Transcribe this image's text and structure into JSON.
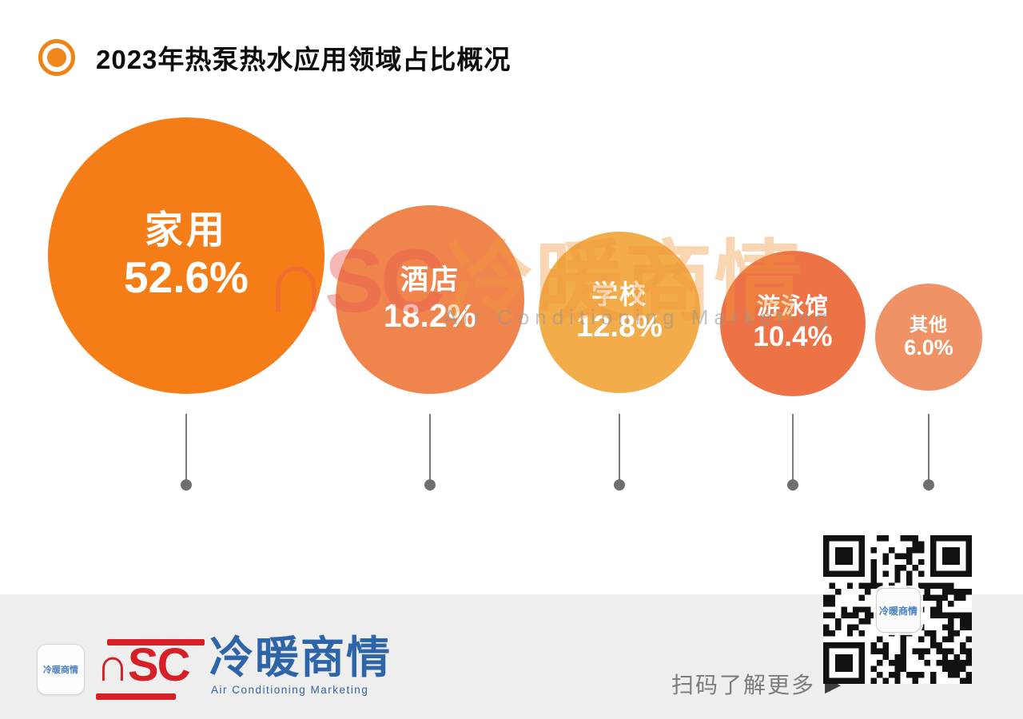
{
  "page": {
    "title": "2023年热泵热水应用领域占比概况"
  },
  "chart_data": {
    "type": "pie",
    "variant": "proportional-area-bubbles",
    "title": "2023年热泵热水应用领域占比概况",
    "categories": [
      "家用",
      "酒店",
      "学校",
      "游泳馆",
      "其他"
    ],
    "values": [
      52.6,
      18.2,
      12.8,
      10.4,
      6.0
    ],
    "labels": [
      "52.6%",
      "18.2%",
      "12.8%",
      "10.4%",
      "6.0%"
    ],
    "colors": [
      "#F57D17",
      "#EF854D",
      "#F2AC49",
      "#ED7347",
      "#EF9366"
    ],
    "legend_position": "none",
    "grid": false,
    "unit": "%"
  },
  "watermark": {
    "logo": "∩SC",
    "cjk": "冷暖商情",
    "en": "Air Conditioning Marketing"
  },
  "footer": {
    "app_icon_text": "冷暖商情",
    "logo_nsc": "∩SC",
    "logo_cjk": "冷暖商情",
    "logo_en": "Air Conditioning Marketing",
    "scan_text": "扫码了解更多",
    "arrow_icon": "▶",
    "qr_center_text": "冷暖商情"
  },
  "colors": {
    "accent_orange": "#F08519",
    "stem_gray": "#7b7b7b",
    "footer_bg": "#EEEEEE",
    "logo_red": "#D61F26",
    "logo_blue": "#2E64A8",
    "qr_dark": "#111111"
  }
}
